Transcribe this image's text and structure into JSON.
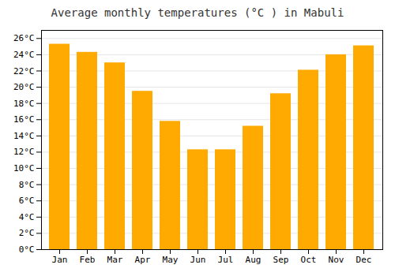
{
  "chart_data": {
    "type": "bar",
    "title": "Average monthly temperatures (°C ) in Mabuli",
    "categories": [
      "Jan",
      "Feb",
      "Mar",
      "Apr",
      "May",
      "Jun",
      "Jul",
      "Aug",
      "Sep",
      "Oct",
      "Nov",
      "Dec"
    ],
    "values": [
      25.3,
      24.3,
      23.0,
      19.5,
      15.8,
      12.3,
      12.3,
      15.2,
      19.2,
      22.1,
      24.0,
      25.1
    ],
    "color": "#FFAA00",
    "ylim": [
      0,
      27
    ],
    "yticks": [
      {
        "value": 0,
        "label": "0°C"
      },
      {
        "value": 2,
        "label": "2°C"
      },
      {
        "value": 4,
        "label": "4°C"
      },
      {
        "value": 6,
        "label": "6°C"
      },
      {
        "value": 8,
        "label": "8°C"
      },
      {
        "value": 10,
        "label": "10°C"
      },
      {
        "value": 12,
        "label": "12°C"
      },
      {
        "value": 14,
        "label": "14°C"
      },
      {
        "value": 16,
        "label": "16°C"
      },
      {
        "value": 18,
        "label": "18°C"
      },
      {
        "value": 20,
        "label": "20°C"
      },
      {
        "value": 22,
        "label": "22°C"
      },
      {
        "value": 24,
        "label": "24°C"
      },
      {
        "value": 26,
        "label": "26°C"
      }
    ],
    "grid": true
  }
}
